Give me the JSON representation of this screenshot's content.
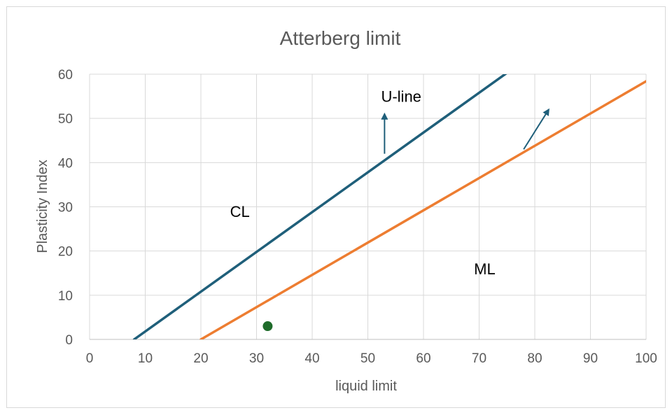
{
  "chart_data": {
    "type": "line",
    "title": "Atterberg limit",
    "xlabel": "liquid limit",
    "ylabel": "Plasticity Index",
    "xlim": [
      0,
      100
    ],
    "ylim": [
      0,
      60
    ],
    "x_ticks": [
      "0",
      "10",
      "20",
      "30",
      "40",
      "50",
      "60",
      "70",
      "80",
      "90",
      "100"
    ],
    "y_ticks": [
      "0",
      "10",
      "20",
      "30",
      "40",
      "50",
      "60"
    ],
    "grid": true,
    "legend": "none",
    "series": [
      {
        "color": "#1f5f7a",
        "points": [
          [
            8,
            0
          ],
          [
            75,
            60.3
          ]
        ]
      },
      {
        "color": "#ed7d31",
        "points": [
          [
            20,
            0
          ],
          [
            100,
            58.4
          ]
        ]
      }
    ],
    "scatter": [
      {
        "x": 32,
        "y": 3,
        "color": "#1e6b2a"
      }
    ],
    "annotations": [
      {
        "text": "U-line",
        "x": 56,
        "y": 55
      },
      {
        "text": "CL",
        "x": 27,
        "y": 29
      },
      {
        "text": "ML",
        "x": 71,
        "y": 16
      }
    ],
    "arrows": [
      {
        "color": "#1f5f7a",
        "from": [
          53,
          42
        ],
        "to": [
          53,
          51
        ]
      },
      {
        "color": "#1f5f7a",
        "from": [
          78,
          43
        ],
        "to": [
          82.5,
          52
        ]
      }
    ]
  }
}
